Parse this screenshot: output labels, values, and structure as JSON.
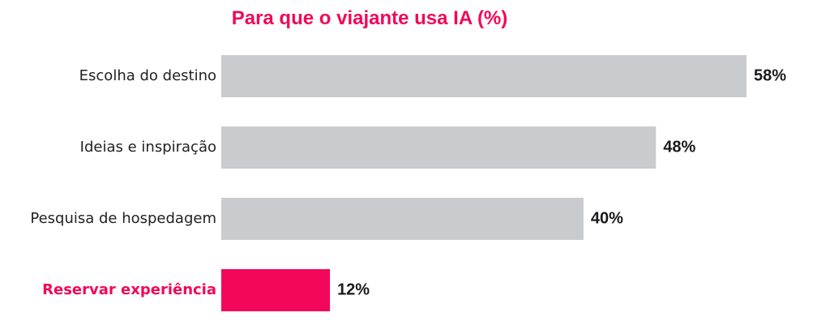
{
  "chart_data": {
    "type": "bar",
    "orientation": "horizontal",
    "title": "Para que o viajante usa IA (%)",
    "categories": [
      "Escolha do destino",
      "Ideias e inspiração",
      "Pesquisa de hospedagem",
      "Reservar experiência"
    ],
    "values": [
      58,
      48,
      40,
      12
    ],
    "value_labels": [
      "58%",
      "48%",
      "40%",
      "12%"
    ],
    "highlight_index": 3,
    "xlim": [
      0,
      58
    ],
    "grid": false,
    "legend": "none"
  },
  "colors": {
    "accent": "#f2075a",
    "bar": "#c9cbcf",
    "text": "#222222",
    "value_text": "#1a1a1a"
  }
}
